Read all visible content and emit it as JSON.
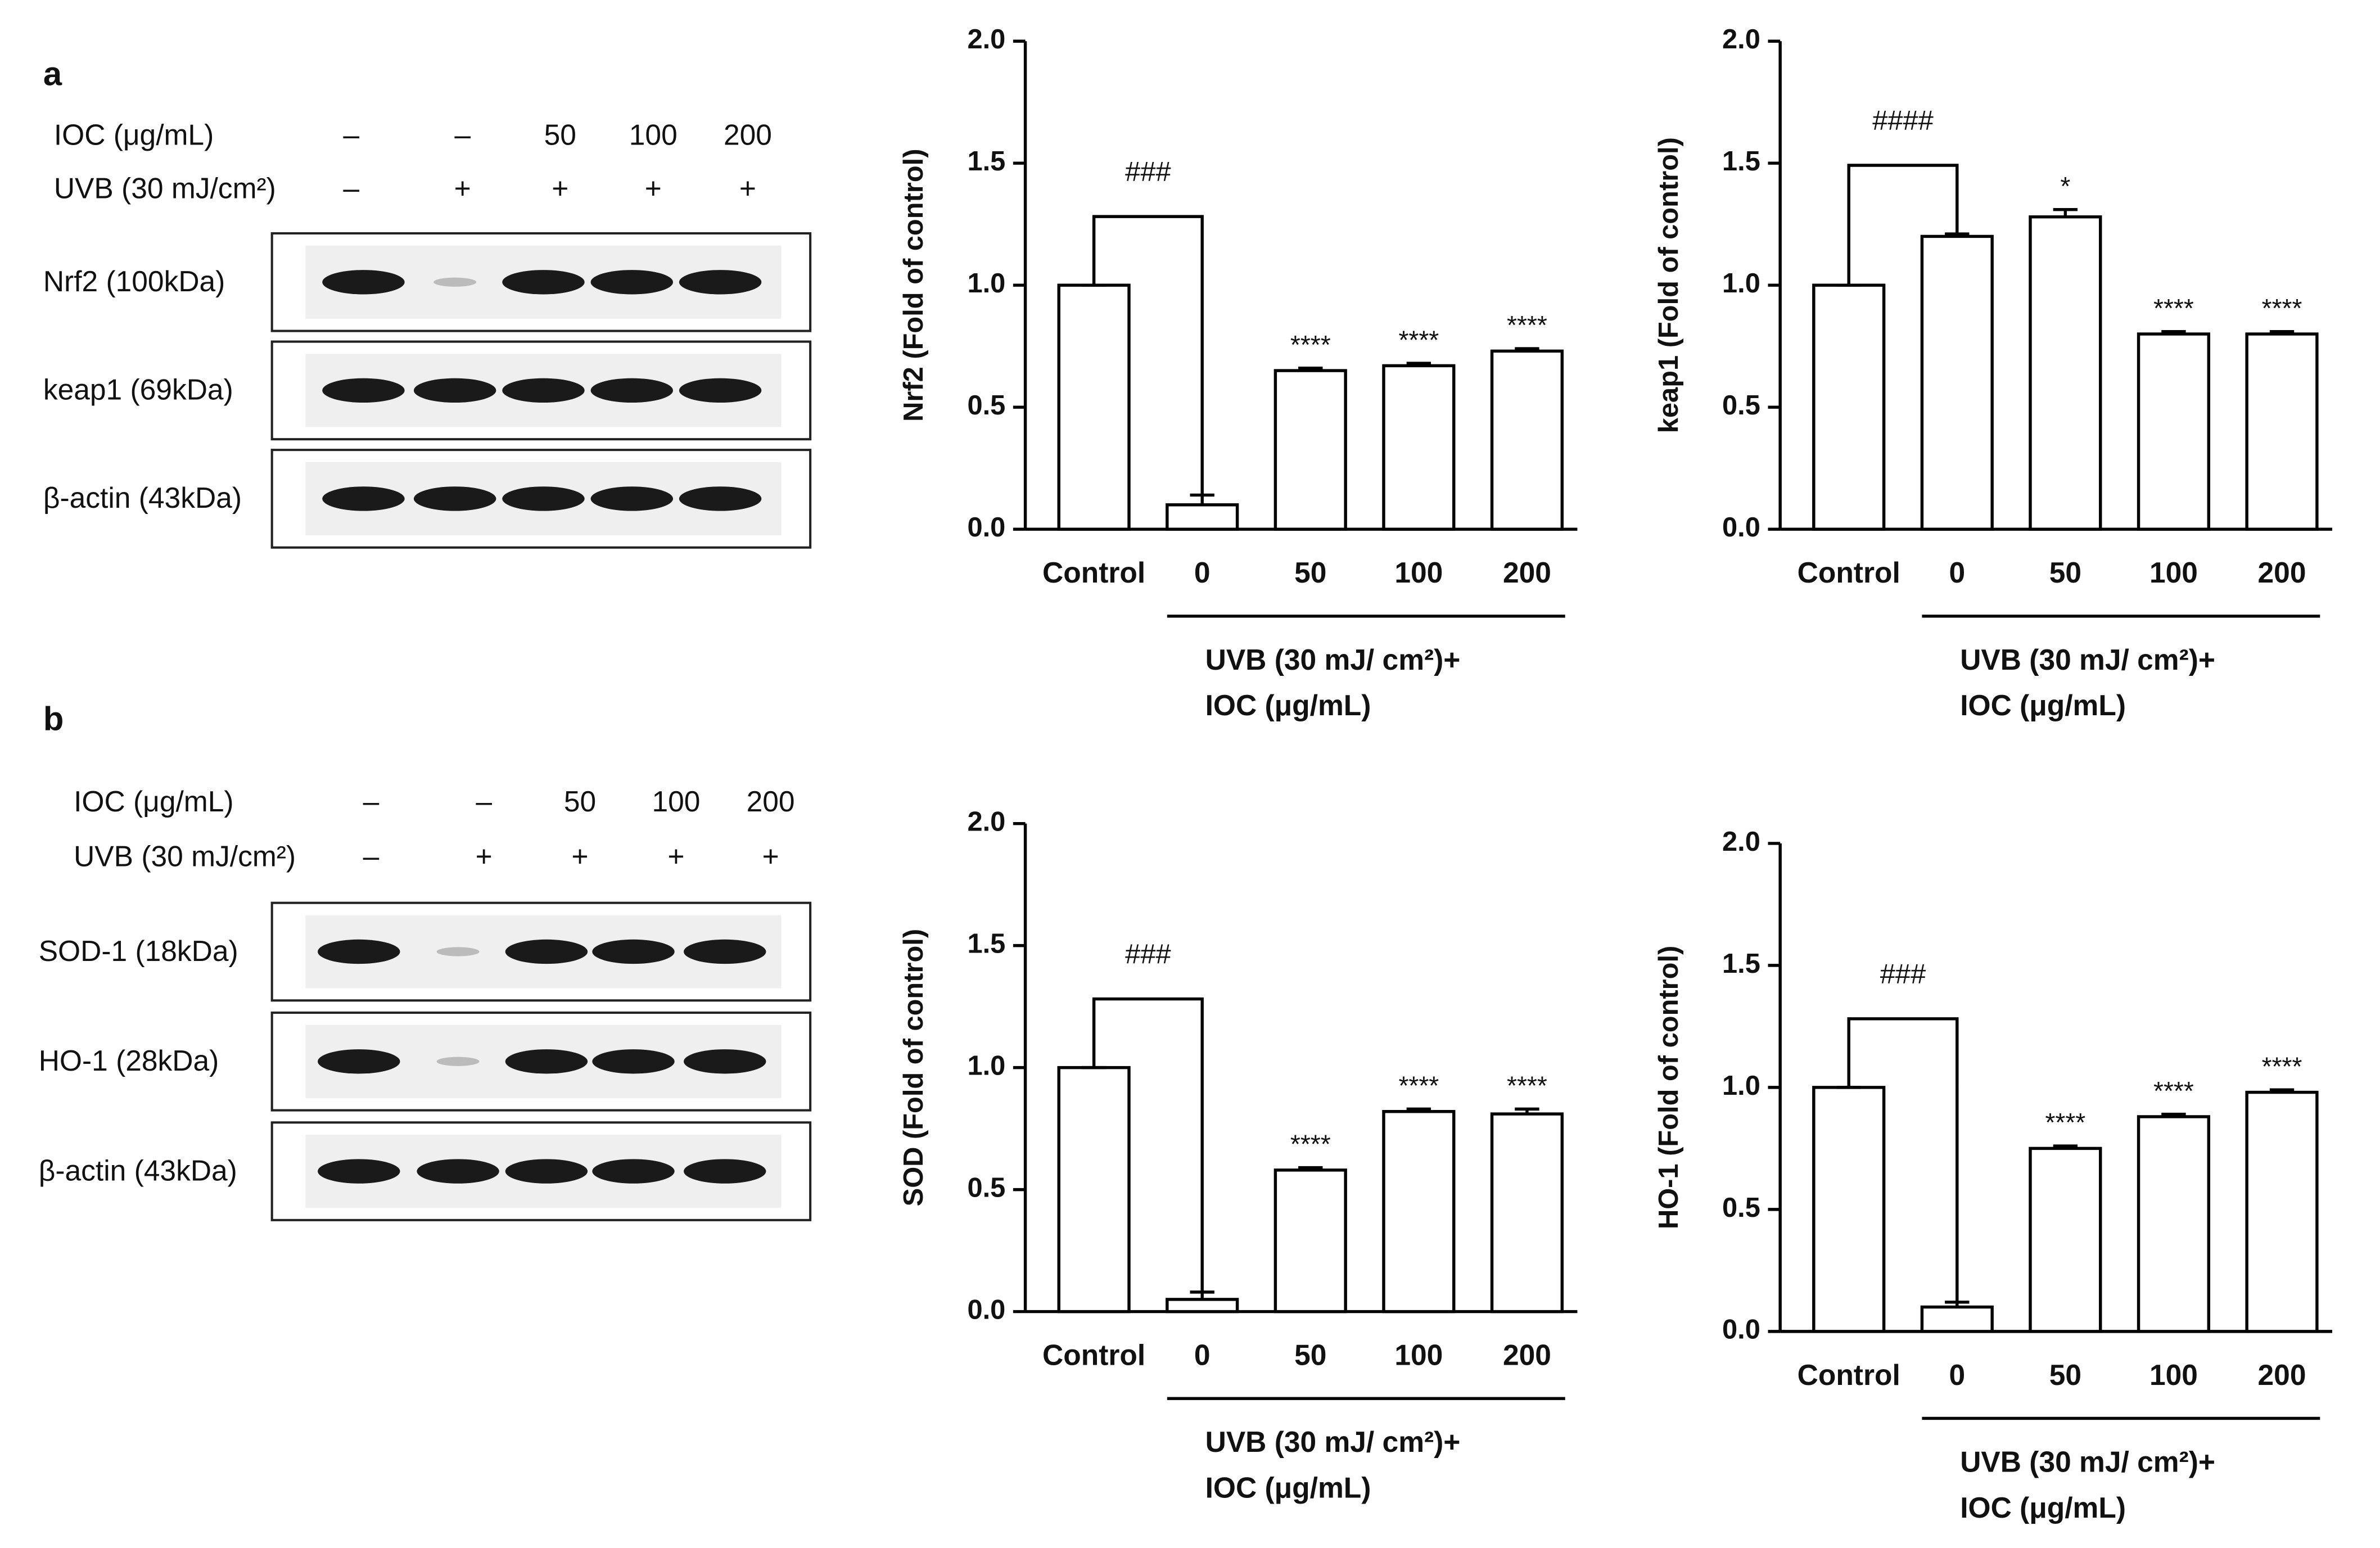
{
  "panels": [
    {
      "label": "a",
      "treatments": [
        {
          "name": "IOC (μg/mL)",
          "lanes": [
            "–",
            "–",
            "50",
            "100",
            "200"
          ]
        },
        {
          "name": "UVB (30 mJ/cm²)",
          "lanes": [
            "–",
            "+",
            "+",
            "+",
            "+"
          ]
        }
      ],
      "blots": [
        "Nrf2 (100kDa)",
        "keap1 (69kDa)",
        "β-actin (43kDa)"
      ]
    },
    {
      "label": "b",
      "treatments": [
        {
          "name": "IOC (μg/mL)",
          "lanes": [
            "–",
            "–",
            "50",
            "100",
            "200"
          ]
        },
        {
          "name": "UVB (30 mJ/cm²)",
          "lanes": [
            "–",
            "+",
            "+",
            "+",
            "+"
          ]
        }
      ],
      "blots": [
        "SOD-1 (18kDa)",
        "HO-1 (28kDa)",
        "β-actin (43kDa)"
      ]
    }
  ],
  "chart_data": [
    {
      "type": "bar",
      "ylabel": "Nrf2 (Fold of control)",
      "categories": [
        "Control",
        "0",
        "50",
        "100",
        "200"
      ],
      "values": [
        1.0,
        0.1,
        0.65,
        0.67,
        0.73
      ],
      "errors": [
        0,
        0.04,
        0.01,
        0.01,
        0.01
      ],
      "significance": [
        null,
        null,
        "****",
        "****",
        "****"
      ],
      "comparison_label": "###",
      "group_label": [
        "UVB (30 mJ/ cm²)+",
        "IOC (μg/mL)"
      ],
      "fill": "#ffffff",
      "color": "#000000",
      "ylim": [
        0,
        2
      ],
      "yticks": [
        {
          "value": 0,
          "label": "0.0"
        },
        {
          "value": 0.5,
          "label": "0.5"
        },
        {
          "value": 1,
          "label": "1.0"
        },
        {
          "value": 1.5,
          "label": "1.5"
        },
        {
          "value": 2,
          "label": "2.0"
        }
      ]
    },
    {
      "type": "bar",
      "ylabel": "keap1 (Fold of control)",
      "categories": [
        "Control",
        "0",
        "50",
        "100",
        "200"
      ],
      "values": [
        1.0,
        1.2,
        1.28,
        0.8,
        0.8
      ],
      "errors": [
        0,
        0.01,
        0.03,
        0.01,
        0.01
      ],
      "significance": [
        null,
        null,
        "*",
        "****",
        "****"
      ],
      "comparison_label": "####",
      "group_label": [
        "UVB (30 mJ/ cm²)+",
        "IOC (μg/mL)"
      ],
      "fill": "#ffffff",
      "color": "#000000",
      "ylim": [
        0,
        2
      ],
      "yticks": [
        {
          "value": 0,
          "label": "0.0"
        },
        {
          "value": 0.5,
          "label": "0.5"
        },
        {
          "value": 1,
          "label": "1.0"
        },
        {
          "value": 1.5,
          "label": "1.5"
        },
        {
          "value": 2,
          "label": "2.0"
        }
      ]
    },
    {
      "type": "bar",
      "ylabel": "SOD (Fold of control)",
      "categories": [
        "Control",
        "0",
        "50",
        "100",
        "200"
      ],
      "values": [
        1.0,
        0.05,
        0.58,
        0.82,
        0.81
      ],
      "errors": [
        0,
        0.03,
        0.01,
        0.01,
        0.02
      ],
      "significance": [
        null,
        null,
        "****",
        "****",
        "****"
      ],
      "comparison_label": "###",
      "group_label": [
        "UVB (30 mJ/ cm²)+",
        "IOC (μg/mL)"
      ],
      "fill": "#ffffff",
      "color": "#000000",
      "ylim": [
        0,
        2
      ],
      "yticks": [
        {
          "value": 0,
          "label": "0.0"
        },
        {
          "value": 0.5,
          "label": "0.5"
        },
        {
          "value": 1,
          "label": "1.0"
        },
        {
          "value": 1.5,
          "label": "1.5"
        },
        {
          "value": 2,
          "label": "2.0"
        }
      ]
    },
    {
      "type": "bar",
      "ylabel": "HO-1 (Fold of control)",
      "categories": [
        "Control",
        "0",
        "50",
        "100",
        "200"
      ],
      "values": [
        1.0,
        0.1,
        0.75,
        0.88,
        0.98
      ],
      "errors": [
        0,
        0.02,
        0.01,
        0.01,
        0.01
      ],
      "significance": [
        null,
        null,
        "****",
        "****",
        "****"
      ],
      "comparison_label": "###",
      "group_label": [
        "UVB (30 mJ/ cm²)+",
        "IOC (μg/mL)"
      ],
      "fill": "#ffffff",
      "color": "#000000",
      "ylim": [
        0,
        2
      ],
      "yticks": [
        {
          "value": 0,
          "label": "0.0"
        },
        {
          "value": 0.5,
          "label": "0.5"
        },
        {
          "value": 1,
          "label": "1.0"
        },
        {
          "value": 1.5,
          "label": "1.5"
        },
        {
          "value": 2,
          "label": "2.0"
        }
      ]
    }
  ]
}
